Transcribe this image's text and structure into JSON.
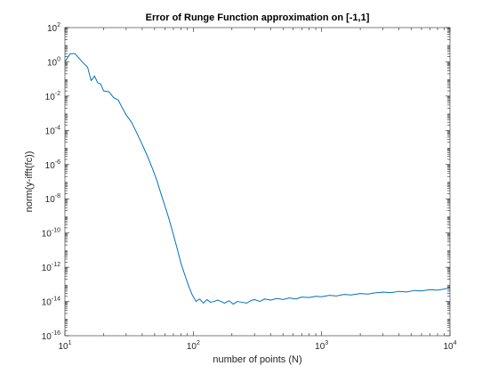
{
  "chart_data": {
    "type": "line",
    "title": "Error of Runge Function approximation on [-1,1]",
    "xlabel": "number of points (N)",
    "ylabel": "norm(y-ifft(fc))",
    "xscale": "log",
    "yscale": "log",
    "xlim": [
      10,
      10000
    ],
    "ylim": [
      1e-16,
      100
    ],
    "x_ticks": [
      {
        "base": "10",
        "exp": "1",
        "value": 10
      },
      {
        "base": "10",
        "exp": "2",
        "value": 100
      },
      {
        "base": "10",
        "exp": "3",
        "value": 1000
      },
      {
        "base": "10",
        "exp": "4",
        "value": 10000
      }
    ],
    "y_ticks": [
      {
        "base": "10",
        "exp": "2",
        "value": 100
      },
      {
        "base": "10",
        "exp": "0",
        "value": 1
      },
      {
        "base": "10",
        "exp": "-2",
        "value": 0.01
      },
      {
        "base": "10",
        "exp": "-4",
        "value": 0.0001
      },
      {
        "base": "10",
        "exp": "-6",
        "value": 1e-06
      },
      {
        "base": "10",
        "exp": "-8",
        "value": 1e-08
      },
      {
        "base": "10",
        "exp": "-10",
        "value": 1e-10
      },
      {
        "base": "10",
        "exp": "-12",
        "value": 1e-12
      },
      {
        "base": "10",
        "exp": "-14",
        "value": 1e-14
      },
      {
        "base": "10",
        "exp": "-16",
        "value": 1e-16
      }
    ],
    "grid": false,
    "line_color": "#0072BD",
    "series": [
      {
        "x": [
          10,
          11,
          12,
          13,
          14,
          15,
          16,
          17,
          18,
          19,
          20,
          22,
          24,
          26,
          28,
          30,
          33,
          36,
          40,
          44,
          48,
          52,
          56,
          60,
          65,
          70,
          75,
          80,
          86,
          92,
          98,
          105,
          112,
          120,
          128,
          136,
          145,
          155,
          165,
          175,
          190,
          205,
          220,
          240,
          260,
          280,
          300,
          330,
          360,
          400,
          450,
          500,
          560,
          630,
          700,
          800,
          900,
          1000,
          1150,
          1300,
          1500,
          1700,
          2000,
          2300,
          2600,
          3000,
          3500,
          4000,
          4600,
          5300,
          6000,
          7000,
          8000,
          9000,
          10000
        ],
        "y": [
          1.0,
          3.0,
          3.0,
          1.5,
          0.8,
          0.5,
          0.08,
          0.15,
          0.06,
          0.05,
          0.02,
          0.018,
          0.008,
          0.006,
          0.002,
          0.0008,
          0.0003,
          8e-05,
          1.5e-05,
          3e-06,
          6e-07,
          1.2e-07,
          2e-08,
          4e-09,
          6e-10,
          8e-11,
          1.2e-11,
          1.8e-12,
          3.5e-13,
          8e-14,
          2.5e-14,
          1e-14,
          1.4e-14,
          8e-15,
          1.3e-14,
          9e-15,
          1e-14,
          1.2e-14,
          1e-14,
          8e-15,
          1.1e-14,
          7e-15,
          1e-14,
          9e-15,
          8e-15,
          1.1e-14,
          1.3e-14,
          1e-14,
          1.4e-14,
          1.2e-14,
          1.5e-14,
          1.3e-14,
          1.6e-14,
          1.4e-14,
          1.8e-14,
          1.7e-14,
          2e-14,
          1.9e-14,
          2.3e-14,
          2.1e-14,
          2.6e-14,
          2.4e-14,
          2.9e-14,
          2.7e-14,
          3.2e-14,
          3.5e-14,
          3.3e-14,
          3.9e-14,
          3.6e-14,
          4.4e-14,
          4.1e-14,
          4.9e-14,
          4.6e-14,
          5.3e-14,
          6.5e-14
        ]
      }
    ]
  }
}
